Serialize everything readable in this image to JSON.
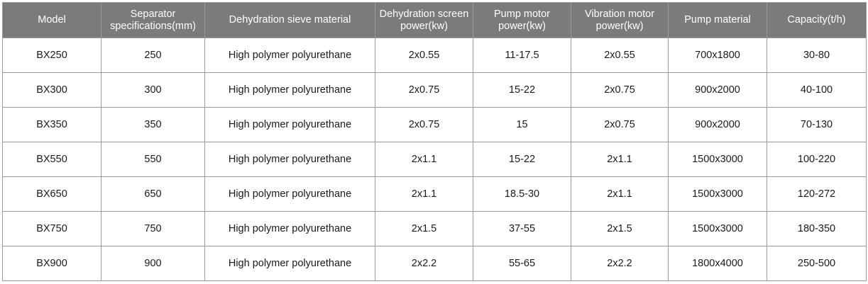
{
  "table": {
    "headers": [
      "Model",
      "Separator specifications(mm)",
      "Dehydration sieve material",
      "Dehydration screen power(kw)",
      "Pump motor power(kw)",
      "Vibration motor power(kw)",
      "Pump  material",
      "Capacity(t/h)"
    ],
    "rows": [
      [
        "BX250",
        "250",
        "High polymer polyurethane",
        "2x0.55",
        "11-17.5",
        "2x0.55",
        "700x1800",
        "30-80"
      ],
      [
        "BX300",
        "300",
        "High polymer polyurethane",
        "2x0.75",
        "15-22",
        "2x0.75",
        "900x2000",
        "40-100"
      ],
      [
        "BX350",
        "350",
        "High polymer polyurethane",
        "2x0.75",
        "15",
        "2x0.75",
        "900x2000",
        "70-130"
      ],
      [
        "BX550",
        "550",
        "High polymer polyurethane",
        "2x1.1",
        "15-22",
        "2x1.1",
        "1500x3000",
        "100-220"
      ],
      [
        "BX650",
        "650",
        "High polymer polyurethane",
        "2x1.1",
        "18.5-30",
        "2x1.1",
        "1500x3000",
        "120-272"
      ],
      [
        "BX750",
        "750",
        "High polymer polyurethane",
        "2x1.5",
        "37-55",
        "2x1.5",
        "1500x3000",
        "180-350"
      ],
      [
        "BX900",
        "900",
        "High polymer polyurethane",
        "2x2.2",
        "55-65",
        "2x2.2",
        "1800x4000",
        "250-500"
      ]
    ]
  },
  "colors": {
    "header_bg": "#7b7b7b",
    "header_text": "#ffffff",
    "border": "#9a9a9a",
    "cell_text": "#1a1a1a"
  }
}
